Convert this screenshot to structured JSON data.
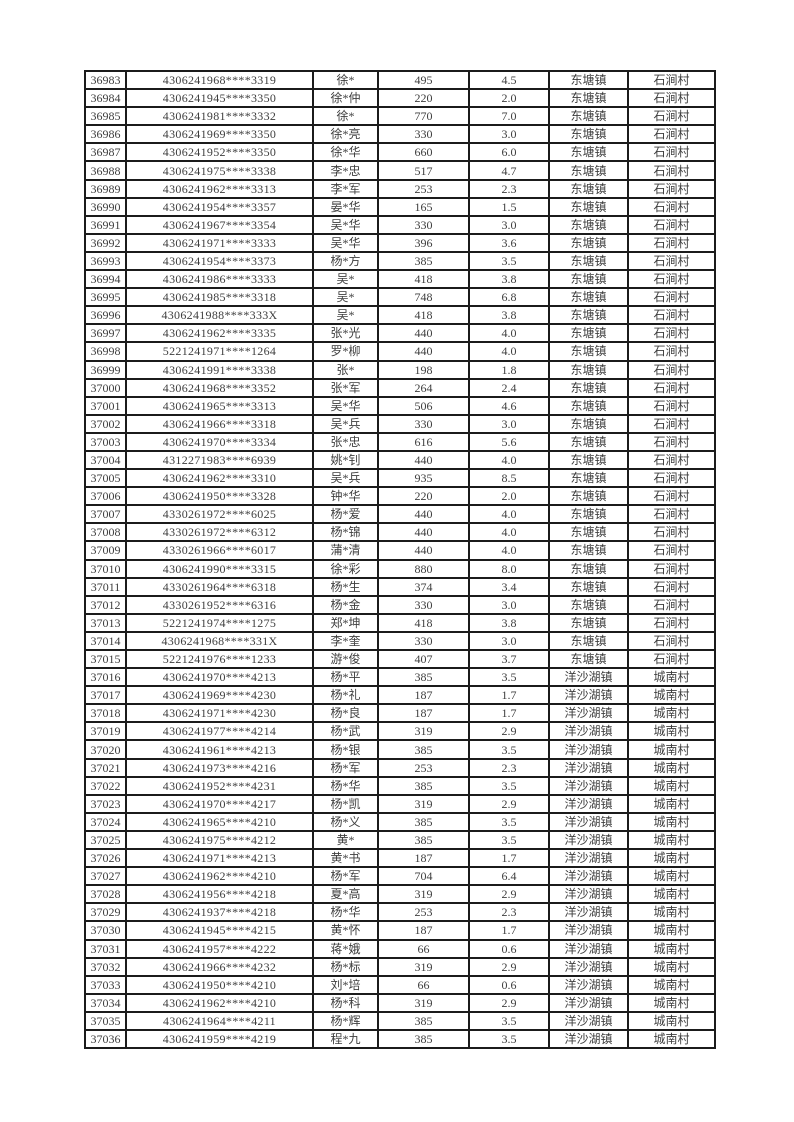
{
  "page": {
    "background_color": "#ffffff",
    "text_color": "#3e3e3e",
    "border_color": "#1b1b1b"
  },
  "table": {
    "rows": [
      [
        "36983",
        "4306241968****3319",
        "徐*",
        "495",
        "4.5",
        "东塘镇",
        "石涧村"
      ],
      [
        "36984",
        "4306241945****3350",
        "徐*仲",
        "220",
        "2.0",
        "东塘镇",
        "石涧村"
      ],
      [
        "36985",
        "4306241981****3332",
        "徐*",
        "770",
        "7.0",
        "东塘镇",
        "石涧村"
      ],
      [
        "36986",
        "4306241969****3350",
        "徐*亮",
        "330",
        "3.0",
        "东塘镇",
        "石涧村"
      ],
      [
        "36987",
        "4306241952****3350",
        "徐*华",
        "660",
        "6.0",
        "东塘镇",
        "石涧村"
      ],
      [
        "36988",
        "4306241975****3338",
        "李*忠",
        "517",
        "4.7",
        "东塘镇",
        "石涧村"
      ],
      [
        "36989",
        "4306241962****3313",
        "李*军",
        "253",
        "2.3",
        "东塘镇",
        "石涧村"
      ],
      [
        "36990",
        "4306241954****3357",
        "晏*华",
        "165",
        "1.5",
        "东塘镇",
        "石涧村"
      ],
      [
        "36991",
        "4306241967****3354",
        "吴*华",
        "330",
        "3.0",
        "东塘镇",
        "石涧村"
      ],
      [
        "36992",
        "4306241971****3333",
        "吴*华",
        "396",
        "3.6",
        "东塘镇",
        "石涧村"
      ],
      [
        "36993",
        "4306241954****3373",
        "杨*方",
        "385",
        "3.5",
        "东塘镇",
        "石涧村"
      ],
      [
        "36994",
        "4306241986****3333",
        "吴*",
        "418",
        "3.8",
        "东塘镇",
        "石涧村"
      ],
      [
        "36995",
        "4306241985****3318",
        "吴*",
        "748",
        "6.8",
        "东塘镇",
        "石涧村"
      ],
      [
        "36996",
        "4306241988****333X",
        "吴*",
        "418",
        "3.8",
        "东塘镇",
        "石涧村"
      ],
      [
        "36997",
        "4306241962****3335",
        "张*光",
        "440",
        "4.0",
        "东塘镇",
        "石涧村"
      ],
      [
        "36998",
        "5221241971****1264",
        "罗*柳",
        "440",
        "4.0",
        "东塘镇",
        "石涧村"
      ],
      [
        "36999",
        "4306241991****3338",
        "张*",
        "198",
        "1.8",
        "东塘镇",
        "石涧村"
      ],
      [
        "37000",
        "4306241968****3352",
        "张*军",
        "264",
        "2.4",
        "东塘镇",
        "石涧村"
      ],
      [
        "37001",
        "4306241965****3313",
        "吴*华",
        "506",
        "4.6",
        "东塘镇",
        "石涧村"
      ],
      [
        "37002",
        "4306241966****3318",
        "吴*兵",
        "330",
        "3.0",
        "东塘镇",
        "石涧村"
      ],
      [
        "37003",
        "4306241970****3334",
        "张*忠",
        "616",
        "5.6",
        "东塘镇",
        "石涧村"
      ],
      [
        "37004",
        "4312271983****6939",
        "姚*钊",
        "440",
        "4.0",
        "东塘镇",
        "石涧村"
      ],
      [
        "37005",
        "4306241962****3310",
        "吴*兵",
        "935",
        "8.5",
        "东塘镇",
        "石涧村"
      ],
      [
        "37006",
        "4306241950****3328",
        "钟*华",
        "220",
        "2.0",
        "东塘镇",
        "石涧村"
      ],
      [
        "37007",
        "4330261972****6025",
        "杨*爱",
        "440",
        "4.0",
        "东塘镇",
        "石涧村"
      ],
      [
        "37008",
        "4330261972****6312",
        "杨*锦",
        "440",
        "4.0",
        "东塘镇",
        "石涧村"
      ],
      [
        "37009",
        "4330261966****6017",
        "蒲*清",
        "440",
        "4.0",
        "东塘镇",
        "石涧村"
      ],
      [
        "37010",
        "4306241990****3315",
        "徐*彩",
        "880",
        "8.0",
        "东塘镇",
        "石涧村"
      ],
      [
        "37011",
        "4330261964****6318",
        "杨*生",
        "374",
        "3.4",
        "东塘镇",
        "石涧村"
      ],
      [
        "37012",
        "4330261952****6316",
        "杨*金",
        "330",
        "3.0",
        "东塘镇",
        "石涧村"
      ],
      [
        "37013",
        "5221241974****1275",
        "郑*坤",
        "418",
        "3.8",
        "东塘镇",
        "石涧村"
      ],
      [
        "37014",
        "4306241968****331X",
        "李*奎",
        "330",
        "3.0",
        "东塘镇",
        "石涧村"
      ],
      [
        "37015",
        "5221241976****1233",
        "游*俊",
        "407",
        "3.7",
        "东塘镇",
        "石涧村"
      ],
      [
        "37016",
        "4306241970****4213",
        "杨*平",
        "385",
        "3.5",
        "洋沙湖镇",
        "城南村"
      ],
      [
        "37017",
        "4306241969****4230",
        "杨*礼",
        "187",
        "1.7",
        "洋沙湖镇",
        "城南村"
      ],
      [
        "37018",
        "4306241971****4230",
        "杨*良",
        "187",
        "1.7",
        "洋沙湖镇",
        "城南村"
      ],
      [
        "37019",
        "4306241977****4214",
        "杨*武",
        "319",
        "2.9",
        "洋沙湖镇",
        "城南村"
      ],
      [
        "37020",
        "4306241961****4213",
        "杨*银",
        "385",
        "3.5",
        "洋沙湖镇",
        "城南村"
      ],
      [
        "37021",
        "4306241973****4216",
        "杨*军",
        "253",
        "2.3",
        "洋沙湖镇",
        "城南村"
      ],
      [
        "37022",
        "4306241952****4231",
        "杨*华",
        "385",
        "3.5",
        "洋沙湖镇",
        "城南村"
      ],
      [
        "37023",
        "4306241970****4217",
        "杨*凯",
        "319",
        "2.9",
        "洋沙湖镇",
        "城南村"
      ],
      [
        "37024",
        "4306241965****4210",
        "杨*义",
        "385",
        "3.5",
        "洋沙湖镇",
        "城南村"
      ],
      [
        "37025",
        "4306241975****4212",
        "黄*",
        "385",
        "3.5",
        "洋沙湖镇",
        "城南村"
      ],
      [
        "37026",
        "4306241971****4213",
        "黄*书",
        "187",
        "1.7",
        "洋沙湖镇",
        "城南村"
      ],
      [
        "37027",
        "4306241962****4210",
        "杨*军",
        "704",
        "6.4",
        "洋沙湖镇",
        "城南村"
      ],
      [
        "37028",
        "4306241956****4218",
        "夏*高",
        "319",
        "2.9",
        "洋沙湖镇",
        "城南村"
      ],
      [
        "37029",
        "4306241937****4218",
        "杨*华",
        "253",
        "2.3",
        "洋沙湖镇",
        "城南村"
      ],
      [
        "37030",
        "4306241945****4215",
        "黄*怀",
        "187",
        "1.7",
        "洋沙湖镇",
        "城南村"
      ],
      [
        "37031",
        "4306241957****4222",
        "蒋*娥",
        "66",
        "0.6",
        "洋沙湖镇",
        "城南村"
      ],
      [
        "37032",
        "4306241966****4232",
        "杨*标",
        "319",
        "2.9",
        "洋沙湖镇",
        "城南村"
      ],
      [
        "37033",
        "4306241950****4210",
        "刘*培",
        "66",
        "0.6",
        "洋沙湖镇",
        "城南村"
      ],
      [
        "37034",
        "4306241962****4210",
        "杨*科",
        "319",
        "2.9",
        "洋沙湖镇",
        "城南村"
      ],
      [
        "37035",
        "4306241964****4211",
        "杨*辉",
        "385",
        "3.5",
        "洋沙湖镇",
        "城南村"
      ],
      [
        "37036",
        "4306241959****4219",
        "程*九",
        "385",
        "3.5",
        "洋沙湖镇",
        "城南村"
      ]
    ]
  }
}
